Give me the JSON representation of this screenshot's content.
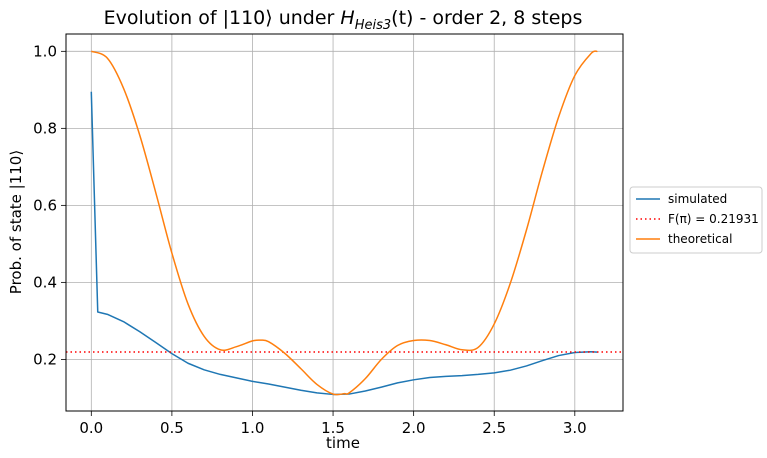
{
  "chart_data": {
    "type": "line",
    "title": {
      "prefix": "Evolution of |110⟩ under ",
      "hname": "H",
      "hsub": "Heis3",
      "harg": "(t)",
      "suffix": " - order 2, 8 steps"
    },
    "xlabel": "time",
    "ylabel": "Prob. of state |110⟩",
    "xlim": [
      -0.157,
      3.299
    ],
    "ylim": [
      0.066,
      1.045
    ],
    "xticks": [
      0.0,
      0.5,
      1.0,
      1.5,
      2.0,
      2.5,
      3.0
    ],
    "xtick_labels": [
      "0.0",
      "0.5",
      "1.0",
      "1.5",
      "2.0",
      "2.5",
      "3.0"
    ],
    "yticks": [
      0.2,
      0.4,
      0.6,
      0.8,
      1.0
    ],
    "ytick_labels": [
      "0.2",
      "0.4",
      "0.6",
      "0.8",
      "1.0"
    ],
    "grid": true,
    "legend_position": "right-outside",
    "series": [
      {
        "name": "simulated",
        "color": "#1f77b4",
        "style": "solid",
        "x": [
          0.0,
          0.04,
          0.1,
          0.2,
          0.3,
          0.4,
          0.5,
          0.6,
          0.7,
          0.8,
          0.9,
          1.0,
          1.1,
          1.2,
          1.3,
          1.4,
          1.5,
          1.6,
          1.7,
          1.8,
          1.9,
          2.0,
          2.1,
          2.2,
          2.3,
          2.4,
          2.5,
          2.6,
          2.7,
          2.8,
          2.9,
          3.0,
          3.05,
          3.1,
          3.14
        ],
        "y": [
          0.895,
          0.323,
          0.317,
          0.298,
          0.272,
          0.244,
          0.215,
          0.19,
          0.173,
          0.161,
          0.152,
          0.143,
          0.136,
          0.128,
          0.12,
          0.113,
          0.109,
          0.11,
          0.118,
          0.128,
          0.139,
          0.147,
          0.153,
          0.156,
          0.158,
          0.161,
          0.165,
          0.172,
          0.183,
          0.197,
          0.21,
          0.218,
          0.219,
          0.22,
          0.219
        ]
      },
      {
        "name": "F(π) = 0.21931",
        "color": "#ff0000",
        "style": "dotted",
        "hline": 0.21931
      },
      {
        "name": "theoretical",
        "color": "#ff7f0e",
        "style": "solid",
        "function": "1 - 2*sin^2(2t)*(1-sin^2(2t))... sampled",
        "x": [
          0.0,
          0.1,
          0.2,
          0.3,
          0.4,
          0.5,
          0.6,
          0.7,
          0.8,
          0.9,
          1.0,
          1.05,
          1.1,
          1.2,
          1.3,
          1.4,
          1.5,
          1.571,
          1.6,
          1.7,
          1.8,
          1.9,
          2.0,
          2.1,
          2.2,
          2.3,
          2.4,
          2.5,
          2.6,
          2.7,
          2.8,
          2.9,
          3.0,
          3.1,
          3.14
        ],
        "y": [
          1.0,
          0.982,
          0.904,
          0.783,
          0.633,
          0.476,
          0.344,
          0.26,
          0.225,
          0.233,
          0.248,
          0.25,
          0.246,
          0.216,
          0.176,
          0.135,
          0.11,
          0.111,
          0.113,
          0.15,
          0.2,
          0.236,
          0.249,
          0.249,
          0.238,
          0.225,
          0.231,
          0.292,
          0.398,
          0.536,
          0.69,
          0.83,
          0.937,
          0.994,
          1.0
        ]
      }
    ]
  }
}
